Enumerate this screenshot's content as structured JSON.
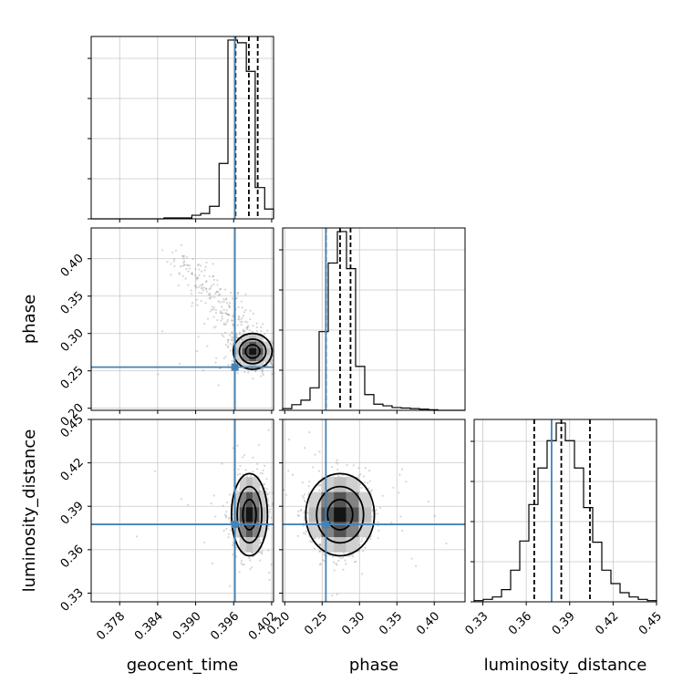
{
  "chart_data": {
    "type": "scatter",
    "parameters": [
      {
        "key": "geocent_time",
        "label": "geocent_time",
        "range": [
          0.3735,
          0.4023
        ],
        "ticks": [
          {
            "v": 0.378,
            "t": "0.378"
          },
          {
            "v": 0.384,
            "t": "0.384"
          },
          {
            "v": 0.39,
            "t": "0.390"
          },
          {
            "v": 0.396,
            "t": "0.396"
          },
          {
            "v": 0.402,
            "t": "0.402"
          }
        ],
        "truth": 0.3962,
        "quantiles": [
          0.3963,
          0.3984,
          0.3998
        ],
        "hist_edges": [
          0.3735,
          0.3749,
          0.3764,
          0.3778,
          0.3793,
          0.3807,
          0.3822,
          0.3836,
          0.385,
          0.3865,
          0.3879,
          0.3894,
          0.3908,
          0.3922,
          0.3937,
          0.3951,
          0.3966,
          0.398,
          0.3994,
          0.4009,
          0.4023
        ],
        "hist_counts": [
          0,
          0,
          0,
          0,
          0,
          0,
          0,
          0,
          1,
          1,
          1,
          4,
          6,
          14,
          62,
          200,
          197,
          165,
          35,
          11
        ]
      },
      {
        "key": "phase",
        "label": "phase",
        "range": [
          0.1972,
          0.4412
        ],
        "ticks": [
          {
            "v": 0.2,
            "t": "0.20"
          },
          {
            "v": 0.25,
            "t": "0.25"
          },
          {
            "v": 0.3,
            "t": "0.30"
          },
          {
            "v": 0.35,
            "t": "0.35"
          },
          {
            "v": 0.4,
            "t": "0.40"
          }
        ],
        "truth": 0.255,
        "quantiles": [
          0.255,
          0.274,
          0.288
        ],
        "hist_edges": [
          0.1972,
          0.2094,
          0.2216,
          0.2338,
          0.246,
          0.2582,
          0.2704,
          0.2826,
          0.2948,
          0.307,
          0.3192,
          0.3314,
          0.3436,
          0.3558,
          0.368,
          0.3802,
          0.3924,
          0.4046,
          0.4168,
          0.429,
          0.4412
        ],
        "hist_counts": [
          3,
          10,
          18,
          40,
          140,
          262,
          318,
          252,
          78,
          28,
          11,
          8,
          5,
          4,
          3,
          2,
          1,
          0,
          0,
          0
        ]
      },
      {
        "key": "luminosity_distance",
        "label": "luminosity_distance",
        "range": [
          0.324,
          0.45
        ],
        "ticks": [
          {
            "v": 0.33,
            "t": "0.33"
          },
          {
            "v": 0.36,
            "t": "0.36"
          },
          {
            "v": 0.39,
            "t": "0.39"
          },
          {
            "v": 0.42,
            "t": "0.42"
          },
          {
            "v": 0.45,
            "t": "0.45"
          }
        ],
        "truth": 0.3775,
        "quantiles": [
          0.3655,
          0.3842,
          0.404
        ],
        "hist_edges": [
          0.324,
          0.3303,
          0.3366,
          0.3429,
          0.3492,
          0.3555,
          0.3618,
          0.3681,
          0.3744,
          0.3807,
          0.387,
          0.3933,
          0.3996,
          0.4059,
          0.4122,
          0.4185,
          0.4248,
          0.4311,
          0.4374,
          0.4437,
          0.45
        ],
        "hist_counts": [
          2,
          4,
          8,
          20,
          52,
          100,
          160,
          220,
          265,
          294,
          265,
          220,
          155,
          98,
          52,
          30,
          15,
          8,
          4,
          2
        ]
      }
    ],
    "grid": true,
    "truth_color": "#4682b4"
  }
}
